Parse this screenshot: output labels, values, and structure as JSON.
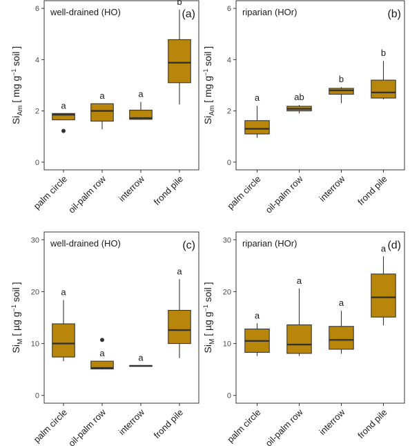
{
  "colors": {
    "box_fill": "#b8860b",
    "box_line": "#333333",
    "frame": "#333333"
  },
  "chart_data": [
    {
      "type": "box",
      "panel_label": "(a)",
      "title": "well-drained (HO)",
      "ylabel_main": "Si",
      "ylabel_sub": "Am",
      "ylabel_unit": " [ mg g",
      "ylabel_sup": "−1",
      "ylabel_tail": " soil ]",
      "ylim": [
        -0.3,
        6.3
      ],
      "yticks": [
        "0",
        "2",
        "4",
        "6"
      ],
      "categories": [
        "palm circle",
        "oil-palm row",
        "interrow",
        "frond pile"
      ],
      "letters": [
        "a",
        "a",
        "a",
        "b"
      ],
      "boxes": [
        {
          "q1": 1.65,
          "median": 1.85,
          "q3": 1.9,
          "whisker_low": 1.65,
          "whisker_high": 1.9,
          "outliers": [
            1.22
          ]
        },
        {
          "q1": 1.6,
          "median": 2.0,
          "q3": 2.28,
          "whisker_low": 1.28,
          "whisker_high": 2.28,
          "outliers": []
        },
        {
          "q1": 1.67,
          "median": 1.72,
          "q3": 2.03,
          "whisker_low": 1.65,
          "whisker_high": 2.35,
          "outliers": []
        },
        {
          "q1": 3.1,
          "median": 3.88,
          "q3": 4.78,
          "whisker_low": 2.25,
          "whisker_high": 5.95,
          "outliers": []
        }
      ]
    },
    {
      "type": "box",
      "panel_label": "(b)",
      "title": "riparian (HOr)",
      "ylabel_main": "Si",
      "ylabel_sub": "Am",
      "ylabel_unit": " [ mg g",
      "ylabel_sup": "−1",
      "ylabel_tail": " soil ]",
      "ylim": [
        -0.3,
        6.3
      ],
      "yticks": [
        "0",
        "2",
        "4",
        "6"
      ],
      "categories": [
        "palm circle",
        "oil-palm row",
        "interrow",
        "frond pile"
      ],
      "letters": [
        "a",
        "ab",
        "b",
        "b"
      ],
      "boxes": [
        {
          "q1": 1.1,
          "median": 1.3,
          "q3": 1.62,
          "whisker_low": 0.95,
          "whisker_high": 2.2,
          "outliers": []
        },
        {
          "q1": 2.0,
          "median": 2.08,
          "q3": 2.18,
          "whisker_low": 1.9,
          "whisker_high": 2.23,
          "outliers": []
        },
        {
          "q1": 2.65,
          "median": 2.8,
          "q3": 2.88,
          "whisker_low": 2.3,
          "whisker_high": 2.93,
          "outliers": []
        },
        {
          "q1": 2.5,
          "median": 2.72,
          "q3": 3.2,
          "whisker_low": 2.45,
          "whisker_high": 3.95,
          "outliers": []
        }
      ]
    },
    {
      "type": "box",
      "panel_label": "(c)",
      "title": "well-drained (HO)",
      "ylabel_main": "Si",
      "ylabel_sub": "M",
      "ylabel_unit": " [ µg g",
      "ylabel_sup": "−1",
      "ylabel_tail": " soil ]",
      "ylim": [
        -1.5,
        31.5
      ],
      "yticks": [
        "0",
        "10",
        "20",
        "30"
      ],
      "categories": [
        "palm circle",
        "oil-palm row",
        "interrow",
        "frond pile"
      ],
      "letters": [
        "a",
        "a",
        "a",
        "a"
      ],
      "boxes": [
        {
          "q1": 7.4,
          "median": 10.0,
          "q3": 13.8,
          "whisker_low": 6.6,
          "whisker_high": 18.4,
          "outliers": []
        },
        {
          "q1": 5.1,
          "median": 5.3,
          "q3": 6.6,
          "whisker_low": 5.0,
          "whisker_high": 6.6,
          "outliers": [
            10.7
          ]
        },
        {
          "q1": 5.6,
          "median": 5.7,
          "q3": 5.75,
          "whisker_low": 5.6,
          "whisker_high": 5.75,
          "outliers": []
        },
        {
          "q1": 10.0,
          "median": 12.6,
          "q3": 16.4,
          "whisker_low": 7.2,
          "whisker_high": 22.4,
          "outliers": []
        }
      ]
    },
    {
      "type": "box",
      "panel_label": "(d)",
      "title": "riparian (HOr)",
      "ylabel_main": "Si",
      "ylabel_sub": "M",
      "ylabel_unit": "  [ µg g",
      "ylabel_sup": "−1",
      "ylabel_tail": " soil ]",
      "ylim": [
        -1.5,
        31.5
      ],
      "yticks": [
        "0",
        "10",
        "20",
        "30"
      ],
      "categories": [
        "palm circle",
        "oil-palm row",
        "interrow",
        "frond pile"
      ],
      "letters": [
        "a",
        "a",
        "a",
        "a"
      ],
      "boxes": [
        {
          "q1": 8.3,
          "median": 10.5,
          "q3": 12.8,
          "whisker_low": 7.6,
          "whisker_high": 13.9,
          "outliers": []
        },
        {
          "q1": 8.1,
          "median": 9.8,
          "q3": 13.6,
          "whisker_low": 7.6,
          "whisker_high": 20.6,
          "outliers": []
        },
        {
          "q1": 8.9,
          "median": 10.7,
          "q3": 13.3,
          "whisker_low": 8.0,
          "whisker_high": 16.3,
          "outliers": []
        },
        {
          "q1": 15.1,
          "median": 18.9,
          "q3": 23.4,
          "whisker_low": 13.5,
          "whisker_high": 26.8,
          "outliers": []
        }
      ]
    }
  ]
}
